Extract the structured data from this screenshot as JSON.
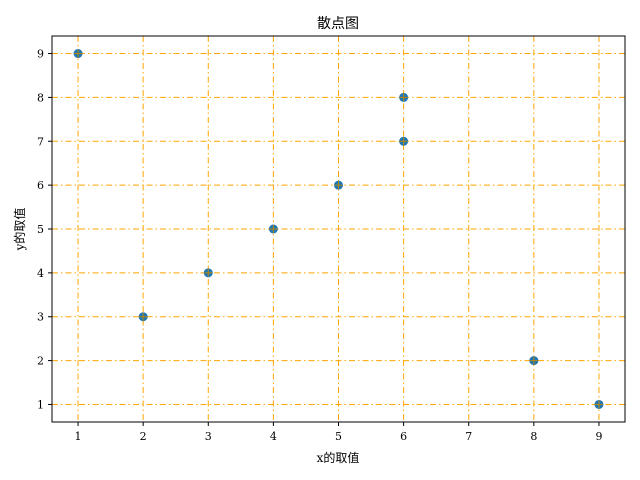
{
  "chart_data": {
    "type": "scatter",
    "title": "散点图",
    "xlabel": "x的取值",
    "ylabel": "y的取值",
    "x": [
      1,
      2,
      3,
      4,
      5,
      6,
      6,
      8,
      9
    ],
    "y": [
      9,
      3,
      4,
      5,
      6,
      7,
      8,
      2,
      1
    ],
    "xticks": [
      "1",
      "2",
      "3",
      "4",
      "5",
      "6",
      "7",
      "8",
      "9"
    ],
    "yticks": [
      "1",
      "2",
      "3",
      "4",
      "5",
      "6",
      "7",
      "8",
      "9"
    ],
    "xlim": [
      0.6,
      9.4
    ],
    "ylim": [
      0.6,
      9.4
    ],
    "grid": true,
    "grid_style": "dashdot",
    "colors": {
      "points": "#1f77b4",
      "point_edge": "#b8860b",
      "grid": "#ffa500",
      "axis": "#000000"
    }
  }
}
